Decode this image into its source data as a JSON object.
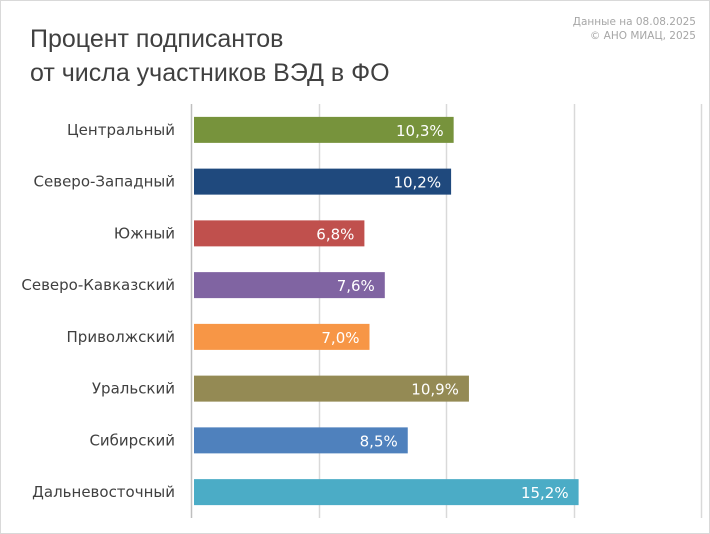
{
  "title": {
    "line1": "Процент подписантов",
    "line2": "от числа участников ВЭД в ФО"
  },
  "source": {
    "line1": "Данные на 08.08.2025",
    "line2": "© АНО МИАЦ, 2025"
  },
  "chart_data": {
    "type": "bar",
    "orientation": "horizontal",
    "categories": [
      "Центральный",
      "Северо-Западный",
      "Южный",
      "Северо-Кавказский",
      "Приволжский",
      "Уральский",
      "Сибирский",
      "Дальневосточный"
    ],
    "values": [
      10.3,
      10.2,
      6.8,
      7.6,
      7.0,
      10.9,
      8.5,
      15.2
    ],
    "data_labels": [
      "10,3%",
      "10,2%",
      "6,8%",
      "7,6%",
      "7,0%",
      "10,9%",
      "8,5%",
      "15,2%"
    ],
    "colors": [
      "#77933c",
      "#1f497d",
      "#c0504d",
      "#8064a2",
      "#f79646",
      "#948a54",
      "#4f81bd",
      "#4bacc6"
    ],
    "xlim": [
      0,
      20
    ],
    "grid": true,
    "xlabel": "",
    "ylabel": ""
  }
}
